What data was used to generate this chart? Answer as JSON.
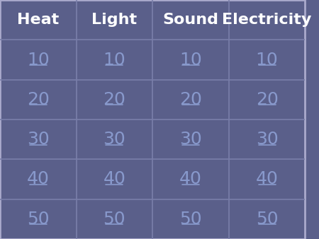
{
  "columns": [
    "Heat",
    "Light",
    "Sound",
    "Electricity"
  ],
  "rows": [
    "10",
    "20",
    "30",
    "40",
    "50"
  ],
  "bg_color": "#5a5f8a",
  "header_text_color": "#ffffff",
  "cell_text_color": "#8899cc",
  "grid_line_color": "#7a7faa",
  "outer_border_color": "#aaaacc",
  "header_fontsize": 16,
  "cell_fontsize": 18,
  "fig_width": 4.5,
  "fig_height": 3.38,
  "dpi": 100
}
